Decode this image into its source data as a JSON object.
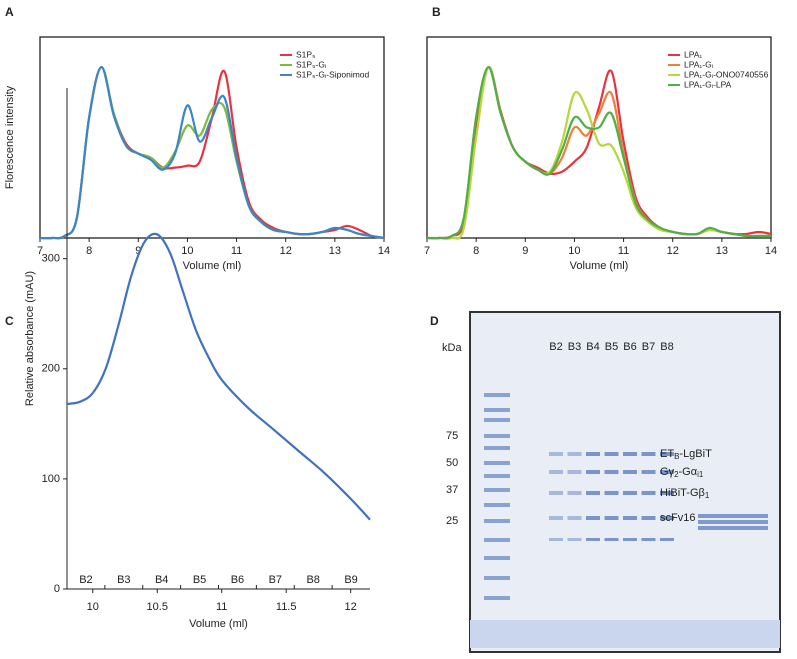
{
  "chart_data": [
    {
      "type": "line",
      "title": "A",
      "xlabel": "Volume (ml)",
      "ylabel": "Florescence intensity",
      "x": [
        7,
        7.25,
        7.5,
        7.75,
        8,
        8.25,
        8.5,
        8.75,
        9,
        9.25,
        9.5,
        9.75,
        10,
        10.25,
        10.5,
        10.75,
        11,
        11.25,
        11.5,
        11.75,
        12,
        12.25,
        12.5,
        12.75,
        13,
        13.25,
        13.5,
        13.75,
        14
      ],
      "xlim": [
        7,
        14
      ],
      "xticks": [
        7,
        8,
        9,
        10,
        11,
        12,
        13,
        14
      ],
      "ylim": [
        0,
        100
      ],
      "legend": "upper right",
      "series": [
        {
          "name": "S1P₅",
          "color": "#e8333f",
          "values": [
            0,
            0,
            1,
            10,
            60,
            85,
            62,
            47,
            42,
            40,
            35,
            35,
            36,
            38,
            60,
            83,
            45,
            18,
            9,
            5,
            3,
            2,
            2,
            3,
            4,
            6,
            4,
            1,
            0
          ]
        },
        {
          "name": "S1P₅-Gᵢ",
          "color": "#7dbb3a",
          "values": [
            0,
            0,
            1,
            10,
            60,
            85,
            62,
            46,
            42,
            40,
            35,
            43,
            56,
            51,
            64,
            65,
            38,
            16,
            8,
            4,
            3,
            2,
            2,
            3,
            5,
            4,
            2,
            1,
            0
          ]
        },
        {
          "name": "S1P₅-Gᵢ-Siponimod",
          "color": "#3a86c8",
          "values": [
            0,
            0,
            1,
            10,
            60,
            85,
            61,
            46,
            42,
            39,
            34,
            42,
            66,
            48,
            60,
            70,
            40,
            16,
            8,
            4,
            3,
            2,
            2,
            3,
            5,
            4,
            2,
            1,
            0
          ]
        }
      ]
    },
    {
      "type": "line",
      "title": "B",
      "xlabel": "Volume (ml)",
      "x": [
        7,
        7.25,
        7.5,
        7.75,
        8,
        8.25,
        8.5,
        8.75,
        9,
        9.25,
        9.5,
        9.75,
        10,
        10.25,
        10.5,
        10.75,
        11,
        11.25,
        11.5,
        11.75,
        12,
        12.25,
        12.5,
        12.75,
        13,
        13.25,
        13.5,
        13.75,
        14
      ],
      "xlim": [
        7,
        14
      ],
      "xticks": [
        7,
        8,
        9,
        10,
        11,
        12,
        13,
        14
      ],
      "ylim": [
        0,
        100
      ],
      "legend": "upper right",
      "series": [
        {
          "name": "LPA₁",
          "color": "#e8333f",
          "values": [
            0,
            0,
            1,
            8,
            55,
            85,
            63,
            45,
            38,
            35,
            32,
            33,
            38,
            45,
            65,
            83,
            48,
            20,
            10,
            5,
            3,
            2,
            2,
            4,
            3,
            2,
            2,
            3,
            2
          ]
        },
        {
          "name": "LPA₁-Gᵢ",
          "color": "#f07f3c",
          "values": [
            0,
            0,
            1,
            10,
            60,
            85,
            62,
            45,
            38,
            34,
            32,
            40,
            55,
            51,
            62,
            72,
            42,
            18,
            9,
            5,
            3,
            2,
            2,
            4,
            3,
            2,
            1,
            1,
            1
          ]
        },
        {
          "name": "LPA₁-Gᵢ-ONO0740556",
          "color": "#b5d83a",
          "values": [
            0,
            0,
            0,
            5,
            50,
            85,
            62,
            45,
            38,
            34,
            33,
            48,
            72,
            64,
            47,
            46,
            33,
            15,
            8,
            4,
            3,
            2,
            2,
            4,
            3,
            2,
            1,
            1,
            1
          ]
        },
        {
          "name": "LPA₁-Gᵢ-LPA",
          "color": "#4fae4a",
          "values": [
            0,
            0,
            1,
            10,
            60,
            85,
            62,
            45,
            38,
            34,
            32,
            44,
            60,
            55,
            55,
            62,
            40,
            17,
            9,
            5,
            3,
            2,
            2,
            5,
            3,
            2,
            1,
            1,
            1
          ]
        }
      ]
    },
    {
      "type": "line",
      "title": "C",
      "xlabel": "Volume (ml)",
      "ylabel": "Relative absorbance (mAU)",
      "x": [
        9.8,
        9.9,
        10,
        10.1,
        10.2,
        10.3,
        10.4,
        10.5,
        10.6,
        10.7,
        10.8,
        10.9,
        11,
        11.2,
        11.4,
        11.6,
        11.8,
        12,
        12.15
      ],
      "xlim": [
        9.8,
        12.15
      ],
      "xticks": [
        10,
        10.5,
        11,
        11.5,
        12
      ],
      "ylim": [
        0,
        455
      ],
      "yticks": [
        0,
        100,
        200,
        300
      ],
      "fractions": [
        "B2",
        "B3",
        "B4",
        "B5",
        "B6",
        "B7",
        "B8",
        "B9"
      ],
      "series": [
        {
          "color": "#3f72c0",
          "values": [
            168,
            170,
            178,
            200,
            240,
            285,
            315,
            322,
            305,
            270,
            235,
            210,
            190,
            165,
            145,
            125,
            105,
            82,
            63
          ]
        }
      ]
    }
  ],
  "gel": {
    "title": "D",
    "size_label": "kDa",
    "markers": [
      "75",
      "50",
      "37",
      "25"
    ],
    "lanes": [
      "B2",
      "B3",
      "B4",
      "B5",
      "B6",
      "B7",
      "B8"
    ],
    "bands": [
      [
        "ET",
        "B",
        "-LgBiT"
      ],
      [
        "Gγ",
        "2",
        "-Gα",
        "i1"
      ],
      [
        "HiBiT-Gβ",
        "1"
      ],
      [
        "scFv16"
      ]
    ]
  }
}
